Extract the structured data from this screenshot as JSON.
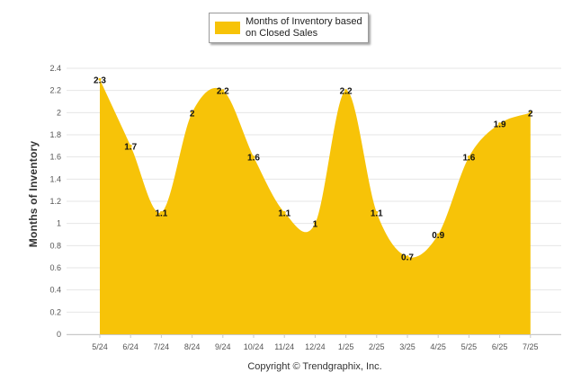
{
  "chart_data": {
    "type": "area",
    "title": "",
    "xlabel": "",
    "ylabel": "Months of Inventory",
    "categories": [
      "5/24",
      "6/24",
      "7/24",
      "8/24",
      "9/24",
      "10/24",
      "11/24",
      "12/24",
      "1/25",
      "2/25",
      "3/25",
      "4/25",
      "5/25",
      "6/25",
      "7/25"
    ],
    "series": [
      {
        "name": "Months of Inventory based on Closed Sales",
        "values": [
          2.3,
          1.7,
          1.1,
          2,
          2.2,
          1.6,
          1.1,
          1,
          2.2,
          1.1,
          0.7,
          0.9,
          1.6,
          1.9,
          2
        ],
        "color": "#f7c308"
      }
    ],
    "yticks": [
      "0",
      "0.2",
      "0.4",
      "0.6",
      "0.8",
      "1",
      "1.2",
      "1.4",
      "1.6",
      "1.8",
      "2",
      "2.2",
      "2.4"
    ],
    "ylim": [
      0,
      2.4
    ],
    "grid": true,
    "legend": "top-center"
  },
  "footer": {
    "copyright": "Copyright © Trendgraphix, Inc."
  }
}
